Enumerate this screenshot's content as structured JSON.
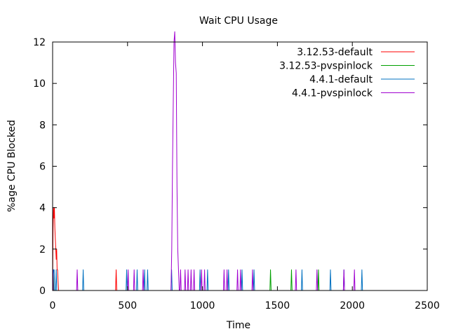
{
  "chart_data": {
    "type": "line",
    "title": "Wait CPU Usage",
    "xlabel": "Time",
    "ylabel": "%age CPU Blocked",
    "xlim": [
      0,
      2500
    ],
    "ylim": [
      0,
      12
    ],
    "xticks": [
      0,
      500,
      1000,
      1500,
      2000,
      2500
    ],
    "yticks": [
      0,
      2,
      4,
      6,
      8,
      10,
      12
    ],
    "grid": false,
    "legend_position": "top-right",
    "series": [
      {
        "name": "3.12.53-default",
        "color": "#ff0000",
        "points": [
          [
            0,
            0
          ],
          [
            3,
            3
          ],
          [
            6,
            4
          ],
          [
            9,
            3.5
          ],
          [
            12,
            4
          ],
          [
            15,
            3
          ],
          [
            18,
            2.5
          ],
          [
            21,
            2
          ],
          [
            24,
            1.5
          ],
          [
            27,
            2
          ],
          [
            30,
            1
          ],
          [
            33,
            1
          ],
          [
            36,
            0.5
          ],
          [
            40,
            0
          ],
          [
            45,
            0
          ],
          [
            420,
            0
          ],
          [
            424,
            1
          ],
          [
            428,
            0
          ]
        ]
      },
      {
        "name": "3.12.53-pvspinlock",
        "color": "#00a000",
        "points": [
          [
            0,
            0
          ],
          [
            4,
            1
          ],
          [
            8,
            0
          ],
          [
            1450,
            0
          ],
          [
            1454,
            1
          ],
          [
            1458,
            0
          ],
          [
            1590,
            0
          ],
          [
            1594,
            1
          ],
          [
            1598,
            0
          ],
          [
            1770,
            0
          ],
          [
            1774,
            1
          ],
          [
            1778,
            0
          ]
        ]
      },
      {
        "name": "4.4.1-default",
        "color": "#0070c0",
        "points": [
          [
            0,
            0
          ],
          [
            6,
            1
          ],
          [
            10,
            1
          ],
          [
            14,
            0
          ],
          [
            20,
            0
          ],
          [
            24,
            1
          ],
          [
            28,
            0
          ],
          [
            200,
            0
          ],
          [
            204,
            1
          ],
          [
            208,
            0
          ],
          [
            490,
            0
          ],
          [
            494,
            1
          ],
          [
            498,
            0
          ],
          [
            560,
            0
          ],
          [
            564,
            1
          ],
          [
            568,
            0
          ],
          [
            610,
            0
          ],
          [
            614,
            1
          ],
          [
            618,
            0
          ],
          [
            630,
            0
          ],
          [
            634,
            1
          ],
          [
            638,
            0
          ],
          [
            790,
            0
          ],
          [
            794,
            1
          ],
          [
            798,
            0
          ],
          [
            980,
            0
          ],
          [
            984,
            1
          ],
          [
            988,
            0
          ],
          [
            1030,
            0
          ],
          [
            1034,
            1
          ],
          [
            1038,
            0
          ],
          [
            1170,
            0
          ],
          [
            1174,
            1
          ],
          [
            1178,
            0
          ],
          [
            1260,
            0
          ],
          [
            1264,
            1
          ],
          [
            1268,
            0
          ],
          [
            1340,
            0
          ],
          [
            1344,
            1
          ],
          [
            1348,
            0
          ],
          [
            1660,
            0
          ],
          [
            1664,
            1
          ],
          [
            1668,
            0
          ],
          [
            1850,
            0
          ],
          [
            1854,
            1
          ],
          [
            1858,
            0
          ],
          [
            1940,
            0
          ],
          [
            1944,
            1
          ],
          [
            1948,
            0
          ],
          [
            2060,
            0
          ],
          [
            2064,
            1
          ],
          [
            2068,
            0
          ],
          [
            2080,
            0
          ]
        ]
      },
      {
        "name": "4.4.1-pvspinlock",
        "color": "#a000d0",
        "points": [
          [
            0,
            0
          ],
          [
            2,
            1
          ],
          [
            5,
            0
          ],
          [
            160,
            0
          ],
          [
            164,
            1
          ],
          [
            168,
            0
          ],
          [
            500,
            0
          ],
          [
            504,
            1
          ],
          [
            508,
            0
          ],
          [
            540,
            0
          ],
          [
            544,
            1
          ],
          [
            548,
            0
          ],
          [
            600,
            0
          ],
          [
            604,
            1
          ],
          [
            608,
            0
          ],
          [
            790,
            0
          ],
          [
            795,
            2
          ],
          [
            800,
            6
          ],
          [
            805,
            9
          ],
          [
            810,
            12
          ],
          [
            815,
            12.5
          ],
          [
            820,
            11
          ],
          [
            825,
            10.5
          ],
          [
            830,
            5
          ],
          [
            835,
            2
          ],
          [
            840,
            1
          ],
          [
            845,
            0
          ],
          [
            850,
            0
          ],
          [
            854,
            1
          ],
          [
            858,
            0
          ],
          [
            880,
            0
          ],
          [
            884,
            1
          ],
          [
            888,
            0
          ],
          [
            900,
            0
          ],
          [
            904,
            1
          ],
          [
            908,
            0
          ],
          [
            920,
            0
          ],
          [
            924,
            1
          ],
          [
            928,
            0
          ],
          [
            940,
            0
          ],
          [
            944,
            1
          ],
          [
            948,
            0
          ],
          [
            990,
            0
          ],
          [
            994,
            1
          ],
          [
            998,
            0
          ],
          [
            1010,
            0
          ],
          [
            1014,
            1
          ],
          [
            1018,
            0
          ],
          [
            1140,
            0
          ],
          [
            1144,
            1
          ],
          [
            1148,
            0
          ],
          [
            1160,
            0
          ],
          [
            1164,
            1
          ],
          [
            1168,
            0
          ],
          [
            1230,
            0
          ],
          [
            1234,
            1
          ],
          [
            1238,
            0
          ],
          [
            1250,
            0
          ],
          [
            1254,
            1
          ],
          [
            1258,
            0
          ],
          [
            1330,
            0
          ],
          [
            1334,
            1
          ],
          [
            1338,
            0
          ],
          [
            1620,
            0
          ],
          [
            1624,
            1
          ],
          [
            1628,
            0
          ],
          [
            1760,
            0
          ],
          [
            1764,
            1
          ],
          [
            1768,
            0
          ],
          [
            1940,
            0
          ],
          [
            1944,
            1
          ],
          [
            1948,
            0
          ],
          [
            2010,
            0
          ],
          [
            2014,
            1
          ],
          [
            2018,
            0
          ]
        ]
      }
    ]
  }
}
